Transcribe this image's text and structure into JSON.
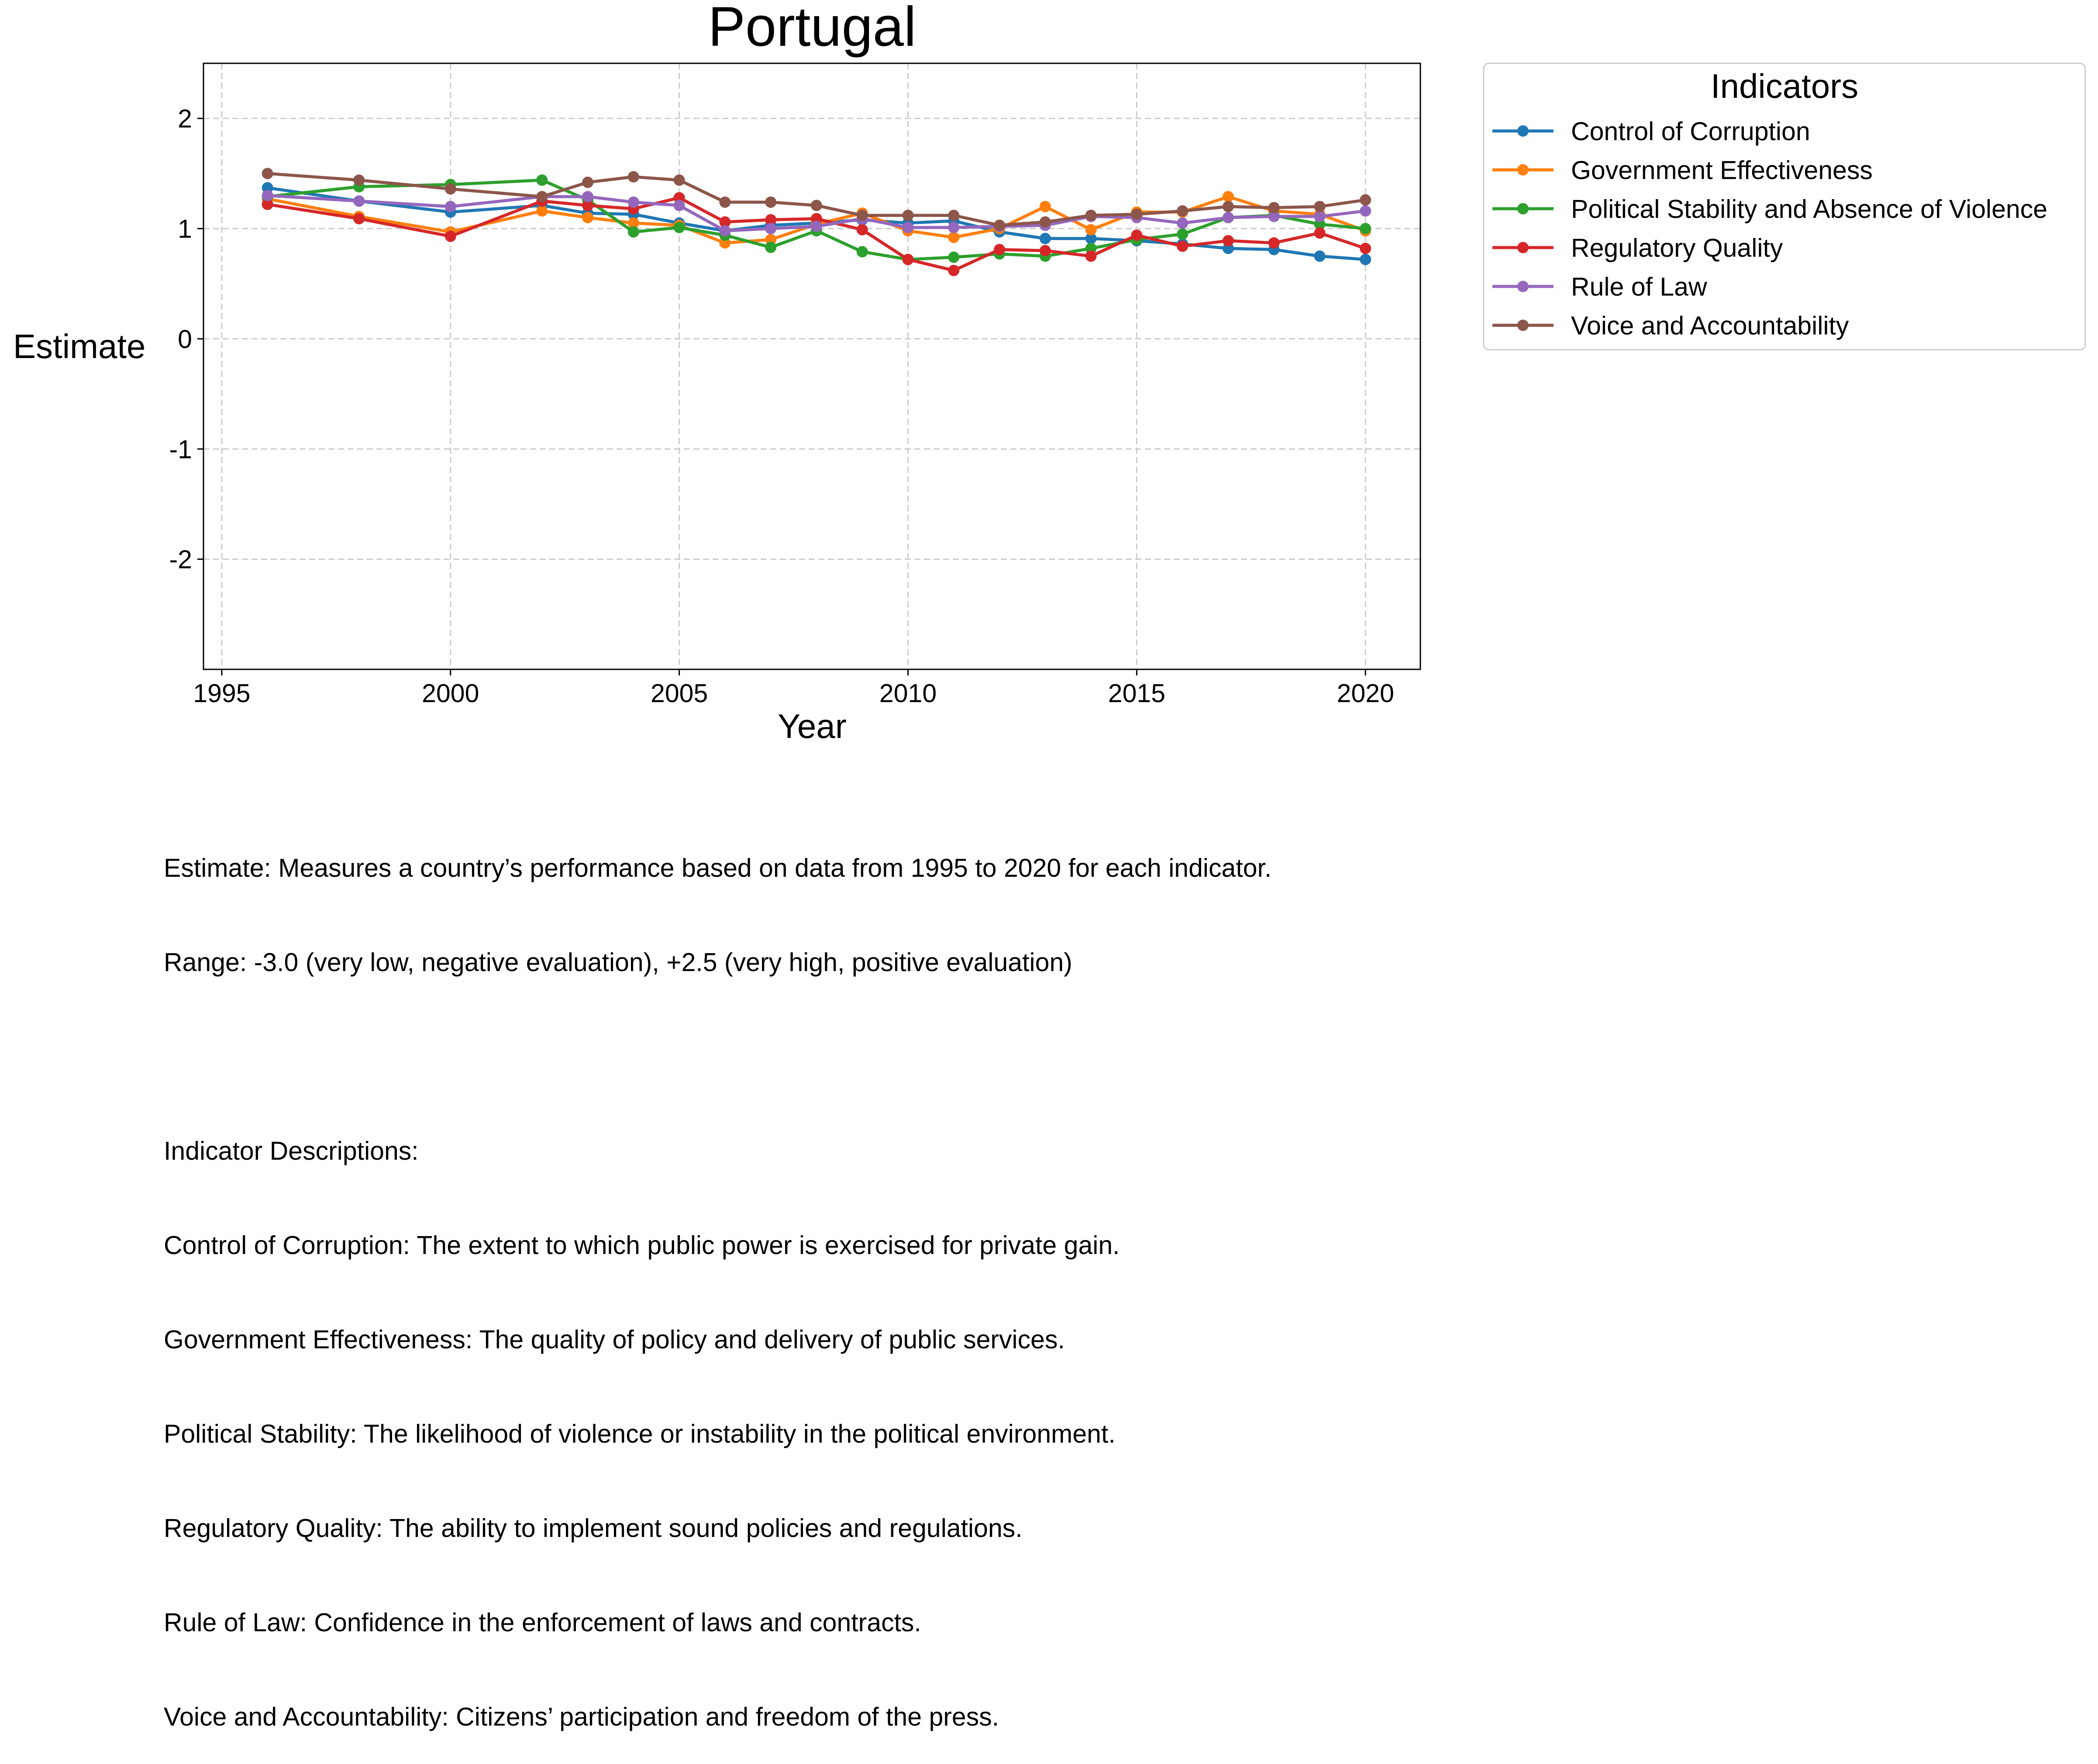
{
  "chart_data": {
    "type": "line",
    "title": "Portugal",
    "xlabel": "Year",
    "ylabel": "Estimate",
    "xlim": [
      1994.6,
      2021.2
    ],
    "ylim": [
      -3.0,
      2.5
    ],
    "xticks": [
      1995,
      2000,
      2005,
      2010,
      2015,
      2020
    ],
    "yticks": [
      2,
      1,
      0,
      -1,
      -2
    ],
    "ytick_labels": [
      "2",
      "1",
      "0",
      "-1",
      "-2"
    ],
    "grid": true,
    "legend": {
      "title": "Indicators",
      "placement": "outside-right"
    },
    "x": [
      1996,
      1998,
      2000,
      2002,
      2003,
      2004,
      2005,
      2006,
      2007,
      2008,
      2009,
      2010,
      2011,
      2012,
      2013,
      2014,
      2015,
      2016,
      2017,
      2018,
      2019,
      2020
    ],
    "series": [
      {
        "name": "Control of Corruption",
        "color": "#1f77b4",
        "values": [
          1.37,
          1.25,
          1.15,
          1.21,
          1.14,
          1.13,
          1.05,
          0.98,
          1.03,
          1.05,
          1.08,
          1.05,
          1.07,
          0.97,
          0.91,
          0.91,
          0.89,
          0.86,
          0.82,
          0.81,
          0.75,
          0.72
        ]
      },
      {
        "name": "Government Effectiveness",
        "color": "#ff7f0e",
        "values": [
          1.27,
          1.11,
          0.97,
          1.16,
          1.1,
          1.05,
          1.03,
          0.87,
          0.9,
          1.04,
          1.14,
          0.98,
          0.92,
          1.0,
          1.2,
          0.99,
          1.15,
          1.15,
          1.29,
          1.16,
          1.13,
          0.98
        ]
      },
      {
        "name": "Political Stability and Absence of Violence",
        "color": "#2ca02c",
        "values": [
          1.29,
          1.38,
          1.4,
          1.44,
          1.26,
          0.97,
          1.01,
          0.94,
          0.83,
          0.98,
          0.79,
          0.72,
          0.74,
          0.77,
          0.75,
          0.82,
          0.9,
          0.95,
          1.1,
          1.12,
          1.04,
          1.0
        ]
      },
      {
        "name": "Regulatory Quality",
        "color": "#d62728",
        "values": [
          1.22,
          1.09,
          0.93,
          1.25,
          1.21,
          1.18,
          1.28,
          1.06,
          1.08,
          1.09,
          0.99,
          0.72,
          0.62,
          0.81,
          0.8,
          0.75,
          0.94,
          0.84,
          0.89,
          0.87,
          0.96,
          0.82
        ]
      },
      {
        "name": "Rule of Law",
        "color": "#9467bd",
        "values": [
          1.3,
          1.25,
          1.2,
          1.29,
          1.29,
          1.24,
          1.21,
          0.98,
          1.0,
          1.02,
          1.09,
          1.01,
          1.01,
          1.02,
          1.03,
          1.11,
          1.1,
          1.05,
          1.1,
          1.11,
          1.11,
          1.16
        ]
      },
      {
        "name": "Voice and Accountability",
        "color": "#8c564b",
        "values": [
          1.5,
          1.44,
          1.36,
          1.29,
          1.42,
          1.47,
          1.44,
          1.24,
          1.24,
          1.21,
          1.12,
          1.12,
          1.12,
          1.03,
          1.06,
          1.12,
          1.13,
          1.16,
          1.2,
          1.19,
          1.2,
          1.26
        ]
      }
    ]
  },
  "notes": {
    "line1": "Estimate: Measures a country’s performance based on data from 1995 to 2020 for each indicator.",
    "line2": "Range: -3.0 (very low, negative evaluation), +2.5 (very high, positive evaluation)",
    "line3": "",
    "line4": "Indicator Descriptions:",
    "line5": "Control of Corruption: The extent to which public power is exercised for private gain.",
    "line6": "Government Effectiveness: The quality of policy and delivery of public services.",
    "line7": "Political Stability: The likelihood of violence or instability in the political environment.",
    "line8": "Regulatory Quality: The ability to implement sound policies and regulations.",
    "line9": "Rule of Law: Confidence in the enforcement of laws and contracts.",
    "line10": "Voice and Accountability: Citizens’ participation and freedom of the press."
  }
}
